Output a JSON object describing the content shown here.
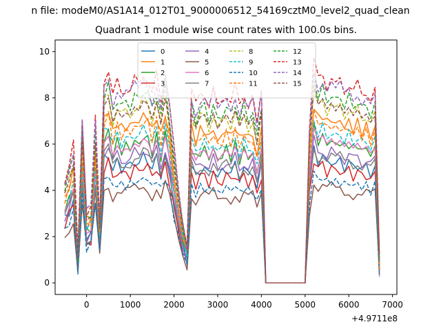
{
  "chart_data": {
    "type": "line",
    "suptitle": "n file: modeM0/AS1A14_012T01_9000006512_54169cztM0_level2_quad_clean",
    "title": "Quadrant 1 module wise count rates with 100.0s bins.",
    "xlabel": "",
    "ylabel": "",
    "x_offset_label": "+4.9711e8",
    "xlim": [
      -720,
      7100
    ],
    "ylim": [
      -0.5,
      10.5
    ],
    "xticks": [
      0,
      1000,
      2000,
      3000,
      4000,
      5000,
      6000,
      7000
    ],
    "yticks": [
      0,
      2,
      4,
      6,
      8,
      10
    ],
    "legend": {
      "placement": "top-center",
      "columns": 4
    },
    "x": [
      -500,
      -400,
      -300,
      -200,
      -100,
      0,
      100,
      200,
      300,
      400,
      500,
      600,
      700,
      800,
      900,
      1000,
      1100,
      1200,
      1300,
      1400,
      1500,
      1600,
      1700,
      1800,
      1900,
      2000,
      2100,
      2200,
      2300,
      2400,
      2500,
      2600,
      2700,
      2800,
      2900,
      3000,
      3100,
      3200,
      3300,
      3400,
      3500,
      3600,
      3700,
      3800,
      3900,
      4000,
      4100,
      4200,
      4300,
      4400,
      4500,
      4600,
      4700,
      4800,
      4900,
      5000,
      5100,
      5200,
      5300,
      5400,
      5500,
      5600,
      5700,
      5800,
      5900,
      6000,
      6100,
      6200,
      6300,
      6400,
      6500,
      6600,
      6700
    ],
    "gaps": [
      [
        4000,
        5100
      ]
    ],
    "series": [
      {
        "name": "0",
        "color": "#1f77b4",
        "dash": "solid",
        "scale": 0.62
      },
      {
        "name": "1",
        "color": "#ff7f0e",
        "dash": "solid",
        "scale": 0.83
      },
      {
        "name": "2",
        "color": "#2ca02c",
        "dash": "solid",
        "scale": 0.72
      },
      {
        "name": "3",
        "color": "#d62728",
        "dash": "solid",
        "scale": 0.58
      },
      {
        "name": "4",
        "color": "#9467bd",
        "dash": "solid",
        "scale": 0.66
      },
      {
        "name": "5",
        "color": "#8c564b",
        "dash": "solid",
        "scale": 0.48
      },
      {
        "name": "6",
        "color": "#e377c2",
        "dash": "solid",
        "scale": 0.7
      },
      {
        "name": "7",
        "color": "#7f7f7f",
        "dash": "solid",
        "scale": 0.64
      },
      {
        "name": "8",
        "color": "#bcbd22",
        "dash": "dashed",
        "scale": 0.9
      },
      {
        "name": "9",
        "color": "#17becf",
        "dash": "dashed",
        "scale": 0.76
      },
      {
        "name": "10",
        "color": "#1f77b4",
        "dash": "dashed",
        "scale": 0.52
      },
      {
        "name": "11",
        "color": "#ff7f0e",
        "dash": "dashed",
        "scale": 0.8
      },
      {
        "name": "12",
        "color": "#2ca02c",
        "dash": "dashed",
        "scale": 0.95
      },
      {
        "name": "13",
        "color": "#d62728",
        "dash": "dashed",
        "scale": 1.03
      },
      {
        "name": "14",
        "color": "#9467bd",
        "dash": "dashed",
        "scale": 1.0
      },
      {
        "name": "15",
        "color": "#8c564b",
        "dash": "dashed",
        "scale": 0.88
      }
    ],
    "base_profile": [
      4.4,
      5.0,
      5.8,
      1.2,
      7.0,
      3.0,
      3.2,
      6.8,
      2.6,
      8.6,
      9.0,
      7.8,
      8.4,
      8.0,
      8.2,
      8.1,
      8.5,
      8.3,
      8.8,
      8.6,
      7.9,
      8.7,
      7.6,
      8.9,
      7.5,
      5.6,
      3.8,
      2.6,
      1.6,
      8.1,
      7.4,
      7.9,
      8.0,
      7.5,
      8.1,
      7.3,
      7.7,
      8.0,
      7.6,
      8.2,
      7.4,
      8.0,
      7.5,
      7.8,
      6.5,
      8.1,
      0.0,
      0.0,
      0.0,
      0.0,
      0.0,
      0.0,
      0.0,
      0.0,
      0.0,
      0.0,
      6.6,
      9.3,
      8.5,
      8.8,
      8.3,
      8.6,
      8.2,
      8.5,
      8.1,
      8.4,
      8.0,
      8.3,
      7.9,
      8.1,
      7.7,
      8.0,
      1.0
    ]
  }
}
